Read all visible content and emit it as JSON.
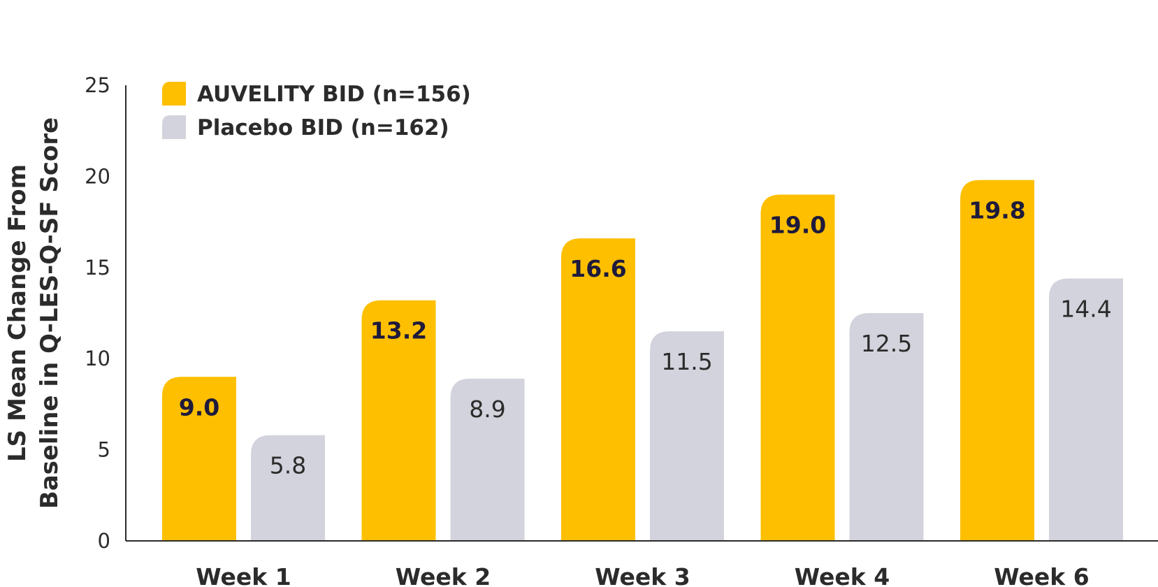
{
  "chart_data": {
    "type": "bar",
    "ylabel_lines": [
      "LS Mean Change From",
      "Baseline in Q-LES-Q-SF Score"
    ],
    "categories": [
      "Week 1",
      "Week 2",
      "Week 3",
      "Week 4",
      "Week 6"
    ],
    "ylim": [
      0,
      25
    ],
    "yticks": [
      0,
      5,
      10,
      15,
      20,
      25
    ],
    "grid": false,
    "legend_placement": "top-left",
    "series": [
      {
        "name": "AUVELITY BID (n=156)",
        "color": "#FDBF00",
        "label_color": "#1E1A3C",
        "values": [
          9.0,
          13.2,
          16.6,
          19.0,
          19.8
        ],
        "labels": [
          "9.0",
          "13.2",
          "16.6",
          "19.0",
          "19.8"
        ]
      },
      {
        "name": "Placebo BID (n=162)",
        "color": "#D3D3DD",
        "label_color": "#2B2B2B",
        "values": [
          5.8,
          8.9,
          11.5,
          12.5,
          14.4
        ],
        "labels": [
          "5.8",
          "8.9",
          "11.5",
          "12.5",
          "14.4"
        ]
      }
    ]
  }
}
